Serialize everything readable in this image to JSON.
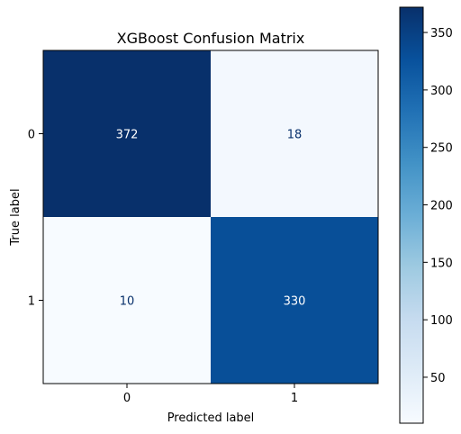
{
  "chart_data": {
    "type": "heatmap",
    "title": "XGBoost Confusion Matrix",
    "xlabel": "Predicted label",
    "ylabel": "True label",
    "x_categories": [
      "0",
      "1"
    ],
    "y_categories": [
      "0",
      "1"
    ],
    "values": [
      [
        372,
        18
      ],
      [
        10,
        330
      ]
    ],
    "colormap": "Blues",
    "colorbar": {
      "range": [
        10,
        372
      ],
      "ticks": [
        50,
        100,
        150,
        200,
        250,
        300,
        350
      ],
      "tick_labels": [
        "50",
        "100",
        "150",
        "200",
        "250",
        "300",
        "350"
      ]
    },
    "colors": {
      "low": "#f7fbff",
      "high": "#08306b",
      "text_dark": "#08306b",
      "text_light": "#ffffff"
    }
  }
}
